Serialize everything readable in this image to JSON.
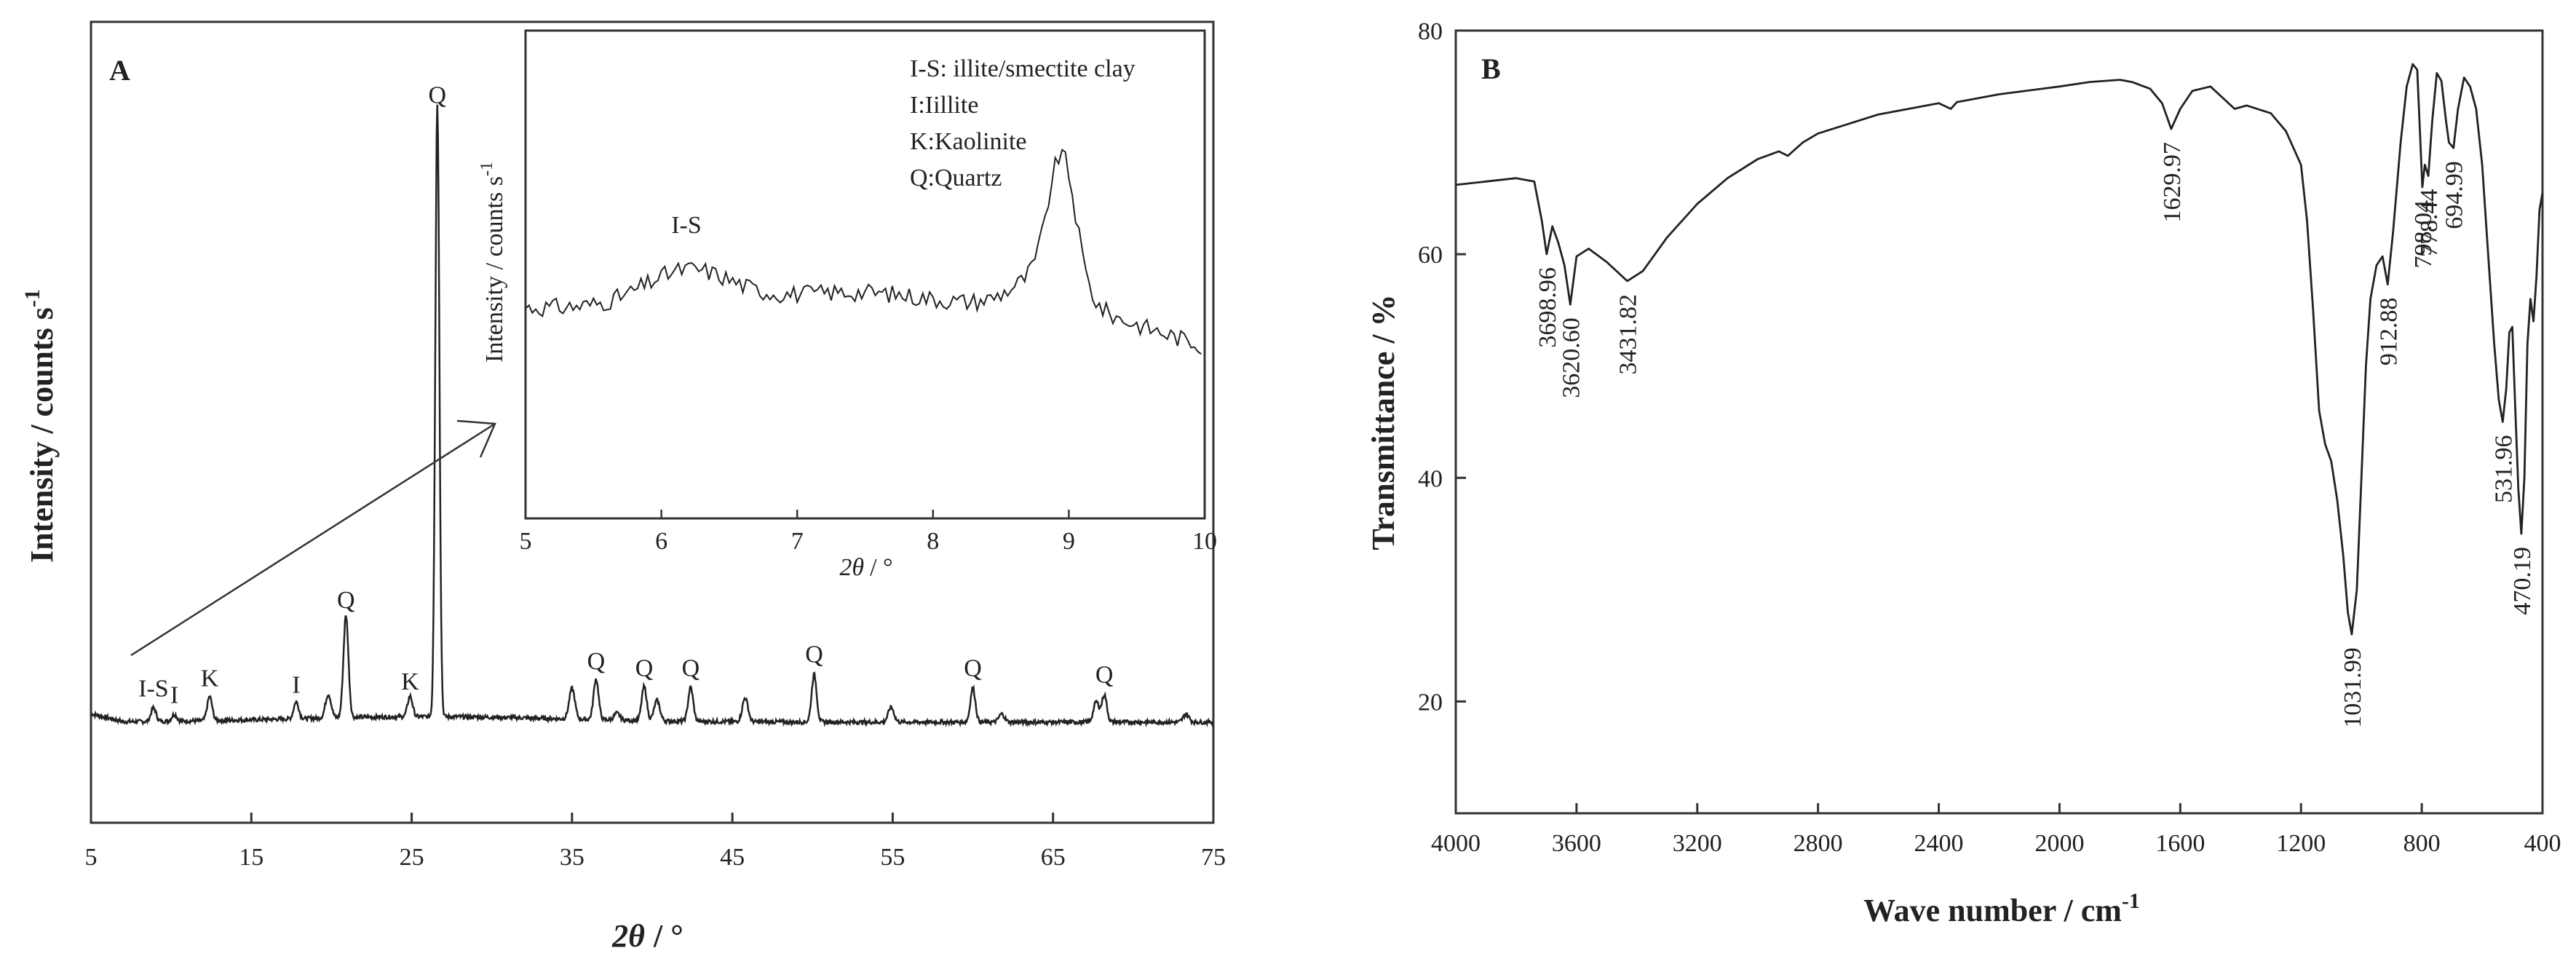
{
  "chart_data": [
    {
      "panel": "A",
      "type": "line",
      "xlabel_sym": "2θ",
      "xlabel_unit": "/ °",
      "ylabel_main": "Intensity / counts s",
      "ylabel_sup": "-1",
      "xlim": [
        5,
        75
      ],
      "x_ticks": [
        "5",
        "15",
        "25",
        "35",
        "45",
        "55",
        "65",
        "75"
      ],
      "x_tick_values": [
        5,
        15,
        25,
        35,
        45,
        55,
        65,
        75
      ],
      "peaks": [
        {
          "label": "I-S",
          "x": 8.9,
          "h": 0.02
        },
        {
          "label": "I",
          "x": 10.2,
          "h": 0.01
        },
        {
          "label": "K",
          "x": 12.4,
          "h": 0.035
        },
        {
          "label": "I",
          "x": 17.8,
          "h": 0.025
        },
        {
          "label": "Q",
          "x": 20.9,
          "h": 0.15
        },
        {
          "label": "K",
          "x": 24.9,
          "h": 0.03
        },
        {
          "label": "Q",
          "x": 26.6,
          "h": 0.9
        },
        {
          "label": "Q",
          "x": 36.5,
          "h": 0.06
        },
        {
          "label": "Q",
          "x": 39.5,
          "h": 0.05
        },
        {
          "label": "Q",
          "x": 42.4,
          "h": 0.05
        },
        {
          "label": "Q",
          "x": 50.1,
          "h": 0.07
        },
        {
          "label": "Q",
          "x": 60.0,
          "h": 0.05
        },
        {
          "label": "Q",
          "x": 68.2,
          "h": 0.04
        }
      ],
      "inset": {
        "type": "line",
        "xlabel_sym": "2θ",
        "xlabel_unit": "/ °",
        "ylabel_main": "Intensity / counts s",
        "ylabel_sup": "-1",
        "xlim": [
          5,
          10
        ],
        "x_ticks": [
          "5",
          "6",
          "7",
          "8",
          "9",
          "10"
        ],
        "x_tick_values": [
          5,
          6,
          7,
          8,
          9,
          10
        ],
        "peak_label": "I-S",
        "peaks": [
          {
            "label": "I-S",
            "x": 6.2
          },
          {
            "label": "",
            "x": 8.95
          }
        ]
      },
      "legend": [
        "I-S: illite/smectite clay",
        "I:Iillite",
        "K:Kaolinite",
        "Q:Quartz"
      ]
    },
    {
      "panel": "B",
      "type": "line",
      "xlabel": "Wave  number / cm",
      "xlabel_sup": "-1",
      "ylabel": "Transmittance / %",
      "xlim": [
        4000,
        400
      ],
      "ylim": [
        10,
        80
      ],
      "x_ticks": [
        "4000",
        "3600",
        "3200",
        "2800",
        "2400",
        "2000",
        "1600",
        "1200",
        "800",
        "400"
      ],
      "x_tick_values": [
        4000,
        3600,
        3200,
        2800,
        2400,
        2000,
        1600,
        1200,
        800,
        400
      ],
      "y_ticks": [
        "20",
        "40",
        "60",
        "80"
      ],
      "y_tick_values": [
        20,
        40,
        60,
        80
      ],
      "spectrum": [
        [
          4000,
          66.2
        ],
        [
          3900,
          66.5
        ],
        [
          3800,
          66.8
        ],
        [
          3740,
          66.5
        ],
        [
          3715,
          63
        ],
        [
          3698.96,
          60
        ],
        [
          3680,
          62.5
        ],
        [
          3660,
          61
        ],
        [
          3640,
          59
        ],
        [
          3620.6,
          55.5
        ],
        [
          3600,
          59.8
        ],
        [
          3560,
          60.5
        ],
        [
          3500,
          59.3
        ],
        [
          3431.82,
          57.6
        ],
        [
          3380,
          58.5
        ],
        [
          3300,
          61.5
        ],
        [
          3200,
          64.5
        ],
        [
          3100,
          66.8
        ],
        [
          3000,
          68.5
        ],
        [
          2930,
          69.2
        ],
        [
          2900,
          68.8
        ],
        [
          2850,
          70
        ],
        [
          2800,
          70.8
        ],
        [
          2600,
          72.5
        ],
        [
          2400,
          73.5
        ],
        [
          2360,
          73
        ],
        [
          2340,
          73.6
        ],
        [
          2200,
          74.3
        ],
        [
          2000,
          75
        ],
        [
          1900,
          75.4
        ],
        [
          1800,
          75.6
        ],
        [
          1760,
          75.4
        ],
        [
          1700,
          74.8
        ],
        [
          1660,
          73.5
        ],
        [
          1629.97,
          71.2
        ],
        [
          1600,
          73
        ],
        [
          1560,
          74.6
        ],
        [
          1500,
          75
        ],
        [
          1460,
          74
        ],
        [
          1420,
          73
        ],
        [
          1380,
          73.3
        ],
        [
          1300,
          72.6
        ],
        [
          1250,
          71
        ],
        [
          1200,
          68
        ],
        [
          1180,
          63
        ],
        [
          1160,
          55
        ],
        [
          1140,
          46
        ],
        [
          1120,
          43
        ],
        [
          1100,
          41.5
        ],
        [
          1080,
          38
        ],
        [
          1060,
          33
        ],
        [
          1045,
          28
        ],
        [
          1031.99,
          26
        ],
        [
          1015,
          30
        ],
        [
          1000,
          40
        ],
        [
          985,
          50
        ],
        [
          970,
          56
        ],
        [
          950,
          59
        ],
        [
          930,
          59.8
        ],
        [
          912.88,
          57.3
        ],
        [
          895,
          62
        ],
        [
          870,
          70
        ],
        [
          850,
          75
        ],
        [
          830,
          77
        ],
        [
          815,
          76.5
        ],
        [
          798.04,
          66
        ],
        [
          790,
          68
        ],
        [
          778.44,
          67
        ],
        [
          765,
          72
        ],
        [
          750,
          76.2
        ],
        [
          735,
          75.5
        ],
        [
          720,
          72
        ],
        [
          710,
          70
        ],
        [
          694.99,
          69.5
        ],
        [
          680,
          73
        ],
        [
          660,
          75.8
        ],
        [
          640,
          75
        ],
        [
          620,
          73
        ],
        [
          600,
          68
        ],
        [
          580,
          60
        ],
        [
          560,
          52
        ],
        [
          545,
          47
        ],
        [
          531.96,
          45
        ],
        [
          520,
          48
        ],
        [
          510,
          53
        ],
        [
          500,
          53.5
        ],
        [
          490,
          46
        ],
        [
          480,
          39
        ],
        [
          470.19,
          35
        ],
        [
          460,
          40
        ],
        [
          450,
          52
        ],
        [
          440,
          56
        ],
        [
          430,
          54
        ],
        [
          420,
          58
        ],
        [
          410,
          64
        ],
        [
          400,
          65.5
        ]
      ],
      "annotations": [
        {
          "label": "3698.96",
          "x": 3698.96,
          "y": 60
        },
        {
          "label": "3620.60",
          "x": 3620.6,
          "y": 55.5
        },
        {
          "label": "3431.82",
          "x": 3431.82,
          "y": 57.6
        },
        {
          "label": "1629.97",
          "x": 1629.97,
          "y": 71.2
        },
        {
          "label": "1031.99",
          "x": 1031.99,
          "y": 26
        },
        {
          "label": "912.88",
          "x": 912.88,
          "y": 57.3
        },
        {
          "label": "798.04",
          "x": 798.04,
          "y": 66
        },
        {
          "label": "778.44",
          "x": 778.44,
          "y": 67
        },
        {
          "label": "694.99",
          "x": 694.99,
          "y": 69.5
        },
        {
          "label": "531.96",
          "x": 531.96,
          "y": 45
        },
        {
          "label": "470.19",
          "x": 470.19,
          "y": 35
        }
      ]
    }
  ]
}
